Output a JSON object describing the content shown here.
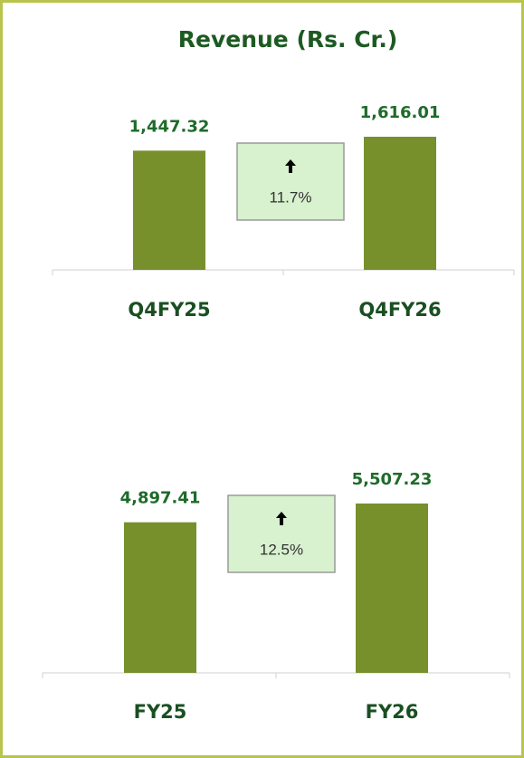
{
  "title": "Revenue (Rs. Cr.)",
  "chart_data": [
    {
      "type": "bar",
      "categories": [
        "Q4FY25",
        "Q4FY26"
      ],
      "values": [
        1447.32,
        1616.01
      ],
      "value_labels": [
        "1,447.32",
        "1,616.01"
      ],
      "color": "#77902b",
      "annotation": "11.7%"
    },
    {
      "type": "bar",
      "categories": [
        "FY25",
        "FY26"
      ],
      "values": [
        4897.41,
        5507.23
      ],
      "value_labels": [
        "4,897.41",
        "5,507.23"
      ],
      "color": "#77902b",
      "annotation": "12.5%"
    }
  ]
}
